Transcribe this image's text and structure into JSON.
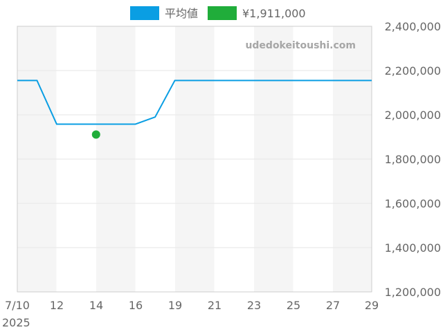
{
  "chart_data": {
    "type": "line",
    "watermark": "udedokeitoushi.com",
    "legend_position": "top",
    "legend": [
      {
        "label": "平均値",
        "color": "#0a9ee3"
      },
      {
        "label": "¥1,911,000",
        "color": "#20ad3a"
      }
    ],
    "x_ticks": [
      "7/10",
      "12",
      "14",
      "16",
      "19",
      "21",
      "23",
      "25",
      "27",
      "29"
    ],
    "x_year_label": "2025",
    "x_range": [
      0,
      9
    ],
    "ylim": [
      1200000,
      2400000
    ],
    "y_ticks": [
      "2,400,000",
      "2,200,000",
      "2,000,000",
      "1,800,000",
      "1,600,000",
      "1,400,000",
      "1,200,000"
    ],
    "y_tick_values": [
      2400000,
      2200000,
      2000000,
      1800000,
      1600000,
      1400000,
      1200000
    ],
    "band_shading": [
      [
        0,
        1
      ],
      [
        2,
        3
      ],
      [
        4,
        5
      ],
      [
        6,
        7
      ],
      [
        8,
        9
      ]
    ],
    "series": [
      {
        "name": "平均値",
        "color": "#0a9ee3",
        "points": [
          [
            0,
            2155000
          ],
          [
            0.5,
            2155000
          ],
          [
            1.0,
            1958000
          ],
          [
            2.0,
            1958000
          ],
          [
            3.0,
            1958000
          ],
          [
            3.5,
            1990000
          ],
          [
            4.0,
            2155000
          ],
          [
            9.0,
            2155000
          ]
        ]
      },
      {
        "name": "¥1,911,000",
        "color": "#20ad3a",
        "marker": "circle",
        "points": [
          [
            2.0,
            1911000
          ]
        ]
      }
    ]
  }
}
